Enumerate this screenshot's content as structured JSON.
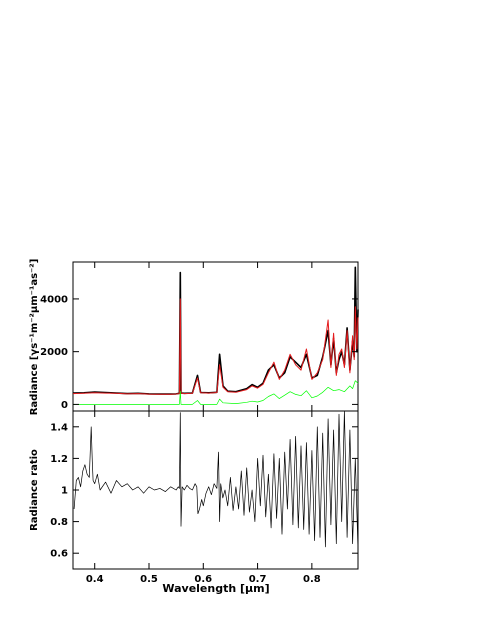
{
  "chart_data": [
    {
      "type": "line",
      "panel": "top",
      "ylabel": "Radiance [γs⁻¹m⁻²μm⁻¹as⁻²]",
      "xlim": [
        0.36,
        0.885
      ],
      "ylim": [
        -250,
        5400
      ],
      "yticks": [
        0,
        2000,
        4000
      ],
      "series": [
        {
          "color": "#000000",
          "x": [
            0.36,
            0.38,
            0.4,
            0.42,
            0.44,
            0.46,
            0.48,
            0.5,
            0.52,
            0.54,
            0.55,
            0.556,
            0.5577,
            0.559,
            0.565,
            0.58,
            0.5893,
            0.595,
            0.61,
            0.625,
            0.63,
            0.6364,
            0.645,
            0.66,
            0.68,
            0.69,
            0.7,
            0.71,
            0.72,
            0.73,
            0.74,
            0.75,
            0.76,
            0.77,
            0.78,
            0.79,
            0.8,
            0.81,
            0.82,
            0.83,
            0.835,
            0.84,
            0.845,
            0.85,
            0.855,
            0.86,
            0.865,
            0.87,
            0.875,
            0.878,
            0.88,
            0.883,
            0.885
          ],
          "y": [
            430,
            440,
            470,
            450,
            430,
            410,
            420,
            400,
            390,
            390,
            400,
            420,
            5000,
            430,
            420,
            430,
            1100,
            450,
            440,
            460,
            1900,
            700,
            500,
            480,
            600,
            750,
            650,
            800,
            1300,
            1500,
            1000,
            1200,
            1800,
            1600,
            1400,
            1900,
            1000,
            1100,
            1800,
            2800,
            1500,
            2500,
            1200,
            1700,
            2000,
            1500,
            2900,
            1300,
            2400,
            1800,
            5200,
            2000,
            3600
          ]
        },
        {
          "color": "#e41a1c",
          "x": [
            0.36,
            0.38,
            0.4,
            0.42,
            0.44,
            0.46,
            0.48,
            0.5,
            0.52,
            0.54,
            0.55,
            0.556,
            0.5577,
            0.559,
            0.565,
            0.58,
            0.5893,
            0.595,
            0.61,
            0.625,
            0.63,
            0.6364,
            0.645,
            0.66,
            0.68,
            0.69,
            0.7,
            0.71,
            0.72,
            0.73,
            0.74,
            0.75,
            0.76,
            0.77,
            0.78,
            0.79,
            0.8,
            0.81,
            0.82,
            0.83,
            0.835,
            0.84,
            0.845,
            0.85,
            0.855,
            0.86,
            0.865,
            0.87,
            0.875,
            0.878,
            0.88,
            0.883,
            0.885
          ],
          "y": [
            410,
            420,
            440,
            430,
            420,
            400,
            410,
            390,
            385,
            385,
            395,
            410,
            4000,
            420,
            410,
            420,
            1000,
            440,
            430,
            450,
            1500,
            650,
            480,
            460,
            560,
            700,
            620,
            760,
            1200,
            1600,
            950,
            1300,
            1900,
            1500,
            1300,
            2100,
            950,
            1200,
            1700,
            3200,
            1400,
            2700,
            1100,
            1900,
            2100,
            1400,
            2800,
            1200,
            2600,
            1700,
            3700,
            2100,
            3300
          ]
        },
        {
          "color": "#00ff00",
          "x": [
            0.36,
            0.4,
            0.45,
            0.5,
            0.55,
            0.556,
            0.5577,
            0.559,
            0.58,
            0.5893,
            0.595,
            0.625,
            0.63,
            0.6364,
            0.66,
            0.68,
            0.69,
            0.7,
            0.71,
            0.72,
            0.73,
            0.74,
            0.75,
            0.76,
            0.77,
            0.78,
            0.79,
            0.8,
            0.81,
            0.82,
            0.83,
            0.84,
            0.85,
            0.86,
            0.87,
            0.875,
            0.88,
            0.885
          ],
          "y": [
            0,
            0,
            0,
            0,
            0,
            0,
            500,
            0,
            0,
            150,
            0,
            0,
            200,
            60,
            30,
            80,
            120,
            90,
            150,
            300,
            400,
            220,
            350,
            480,
            380,
            330,
            520,
            250,
            320,
            460,
            650,
            520,
            560,
            480,
            700,
            600,
            900,
            800
          ]
        }
      ]
    },
    {
      "type": "line",
      "panel": "bottom",
      "xlabel": "Wavelength [μm]",
      "ylabel": "Radiance ratio",
      "xlim": [
        0.36,
        0.885
      ],
      "ylim": [
        0.5,
        1.5
      ],
      "xticks": [
        0.4,
        0.5,
        0.6,
        0.7,
        0.8
      ],
      "yticks": [
        0.6,
        0.8,
        1,
        1.2,
        1.4
      ],
      "series": [
        {
          "color": "#000000",
          "x": [
            0.362,
            0.366,
            0.37,
            0.374,
            0.378,
            0.382,
            0.386,
            0.39,
            0.3935,
            0.3955,
            0.397,
            0.4,
            0.405,
            0.41,
            0.42,
            0.43,
            0.44,
            0.45,
            0.46,
            0.47,
            0.48,
            0.49,
            0.5,
            0.51,
            0.52,
            0.53,
            0.54,
            0.55,
            0.554,
            0.556,
            0.5577,
            0.559,
            0.561,
            0.565,
            0.57,
            0.575,
            0.58,
            0.585,
            0.588,
            0.59,
            0.593,
            0.597,
            0.6,
            0.605,
            0.61,
            0.615,
            0.62,
            0.625,
            0.628,
            0.63,
            0.632,
            0.636,
            0.64,
            0.645,
            0.65,
            0.655,
            0.66,
            0.665,
            0.67,
            0.675,
            0.68,
            0.685,
            0.69,
            0.695,
            0.7,
            0.705,
            0.71,
            0.715,
            0.72,
            0.725,
            0.73,
            0.735,
            0.74,
            0.745,
            0.75,
            0.755,
            0.76,
            0.765,
            0.77,
            0.775,
            0.78,
            0.785,
            0.79,
            0.795,
            0.8,
            0.805,
            0.81,
            0.815,
            0.82,
            0.825,
            0.83,
            0.835,
            0.84,
            0.845,
            0.85,
            0.855,
            0.86,
            0.865,
            0.87,
            0.875,
            0.88,
            0.885
          ],
          "y": [
            0.88,
            1.06,
            1.08,
            1.02,
            1.12,
            1.16,
            1.1,
            1.08,
            1.4,
            1.18,
            1.06,
            1.04,
            1.1,
            1.0,
            1.05,
            0.98,
            1.06,
            1.02,
            1.04,
            1.0,
            1.02,
            0.98,
            1.02,
            1.0,
            1.01,
            0.99,
            1.02,
            1.0,
            1.02,
            1.01,
            1.49,
            0.77,
            1.02,
            1.0,
            1.03,
            1.01,
            1.0,
            1.04,
            1.02,
            0.85,
            0.88,
            0.94,
            0.9,
            0.98,
            1.02,
            0.97,
            1.04,
            1.01,
            1.24,
            0.8,
            1.04,
            0.95,
            1.0,
            0.9,
            1.08,
            0.87,
            1.02,
            0.88,
            1.12,
            0.84,
            1.14,
            0.86,
            1.0,
            0.8,
            1.2,
            0.9,
            1.22,
            0.83,
            1.1,
            0.76,
            1.23,
            0.82,
            1.2,
            0.72,
            1.24,
            0.88,
            1.32,
            0.78,
            1.34,
            0.76,
            1.28,
            0.75,
            1.3,
            0.72,
            1.25,
            0.68,
            1.4,
            0.7,
            1.36,
            0.64,
            1.45,
            0.78,
            1.38,
            0.66,
            1.48,
            0.8,
            1.5,
            0.7,
            1.38,
            0.66,
            1.2,
            0.62
          ]
        }
      ]
    }
  ]
}
